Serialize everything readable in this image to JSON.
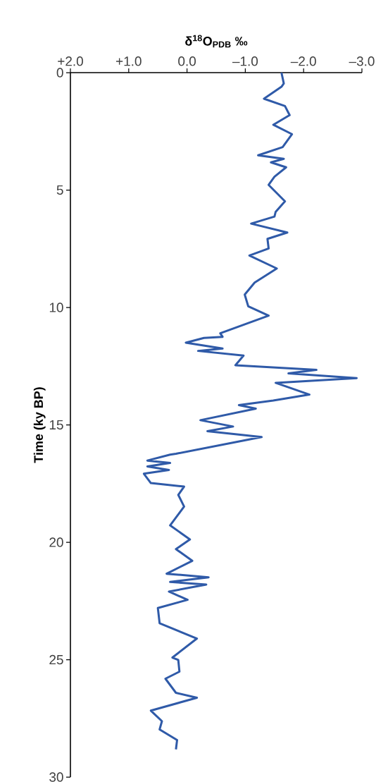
{
  "chart_data": {
    "type": "line",
    "xlabel": "**δ$^{18}$O$_{PDB}$ ‰**",
    "ylabel": "**Time (ky BP)**",
    "xlim": [
      2,
      -3
    ],
    "ylim": [
      30,
      0
    ],
    "xticks": [
      {
        "value": 2,
        "label": "+2.0"
      },
      {
        "value": 1,
        "label": "+1.0"
      },
      {
        "value": 0,
        "label": "0.0"
      },
      {
        "value": -1,
        "label": "–1.0"
      },
      {
        "value": -2,
        "label": "–2.0"
      },
      {
        "value": -3,
        "label": "–3.0"
      }
    ],
    "yticks": [
      0,
      5,
      10,
      15,
      20,
      25,
      30
    ],
    "series": [
      {
        "color": "#2f5aa8",
        "x": [
          -1.62,
          -1.66,
          -1.62,
          -1.32,
          -1.68,
          -1.76,
          -1.48,
          -1.8,
          -1.64,
          -1.22,
          -1.66,
          -1.44,
          -1.7,
          -1.5,
          -1.4,
          -1.68,
          -1.52,
          -1.5,
          -1.1,
          -1.72,
          -1.38,
          -1.4,
          -1.07,
          -1.54,
          -1.16,
          -0.99,
          -1.05,
          -1.4,
          -0.57,
          -0.61,
          -0.29,
          0.02,
          -0.61,
          -0.19,
          -0.97,
          -0.83,
          -2.22,
          -1.74,
          -2.91,
          -1.52,
          -2.1,
          -1.48,
          -0.89,
          -1.18,
          -0.23,
          -0.79,
          -0.35,
          -1.28,
          0.19,
          0.29,
          0.68,
          0.29,
          0.68,
          0.31,
          0.74,
          0.62,
          0.05,
          0.15,
          0.05,
          0.29,
          -0.05,
          0.19,
          -0.09,
          0.35,
          -0.37,
          0.29,
          -0.33,
          0.31,
          -0.01,
          0.5,
          0.47,
          -0.17,
          0.25,
          0.15,
          0.13,
          0.37,
          0.19,
          -0.17,
          0.62,
          0.43,
          0.47,
          0.17,
          0.19
        ],
        "values": [
          0,
          0.46,
          0.6,
          1.11,
          1.42,
          1.81,
          2.22,
          2.62,
          3.17,
          3.52,
          3.67,
          3.82,
          4.03,
          4.43,
          4.78,
          5.48,
          5.93,
          6.13,
          6.43,
          6.81,
          7.08,
          7.49,
          7.79,
          8.34,
          8.94,
          9.45,
          9.95,
          10.35,
          11.1,
          11.25,
          11.3,
          11.5,
          11.75,
          11.85,
          12.05,
          12.46,
          12.66,
          12.81,
          13.01,
          13.21,
          13.71,
          13.96,
          14.16,
          14.31,
          14.8,
          15.07,
          15.27,
          15.52,
          16.23,
          16.27,
          16.52,
          16.62,
          16.77,
          16.92,
          17.08,
          17.48,
          17.63,
          17.98,
          18.48,
          19.28,
          19.88,
          20.29,
          20.79,
          21.34,
          21.49,
          21.69,
          21.8,
          22.1,
          22.45,
          22.8,
          23.45,
          24.1,
          24.91,
          25.01,
          25.51,
          25.81,
          26.41,
          26.62,
          27.17,
          27.62,
          27.97,
          28.42,
          28.82
        ]
      }
    ]
  }
}
